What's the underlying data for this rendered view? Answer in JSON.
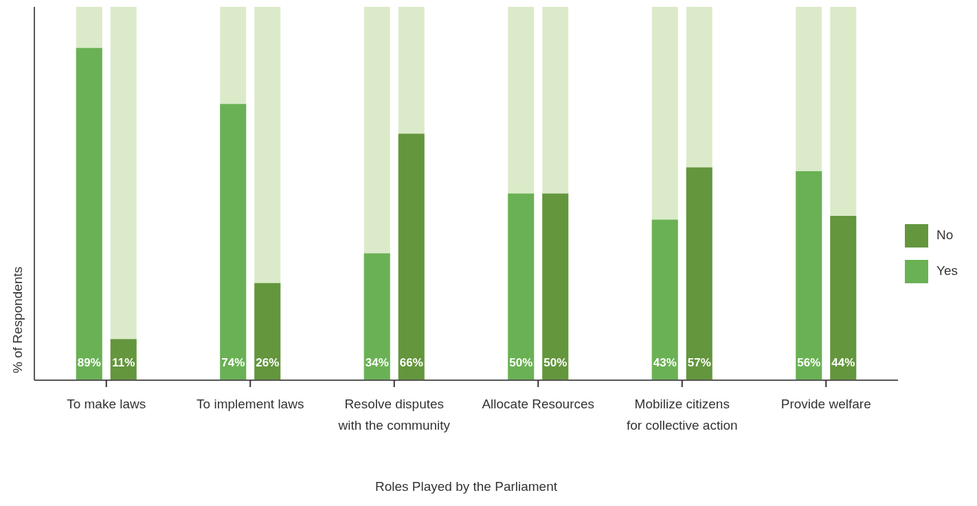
{
  "chart_data": {
    "type": "bar",
    "xlabel": "Roles Played by the Parliament",
    "ylabel": "% of Respondents",
    "categories": [
      "To make laws",
      "To implement laws",
      "Resolve disputes with the community",
      "Allocate Resources",
      "Mobilize citizens for collective action",
      "Provide welfare"
    ],
    "series": [
      {
        "name": "Yes",
        "color": "#6ab155",
        "values": [
          89,
          74,
          34,
          50,
          43,
          56
        ],
        "value_labels": [
          "89%",
          "74%",
          "34%",
          "50%",
          "43%",
          "56%"
        ]
      },
      {
        "name": "No",
        "color": "#64963e",
        "values": [
          11,
          26,
          66,
          50,
          57,
          44
        ],
        "value_labels": [
          "11%",
          "26%",
          "66%",
          "50%",
          "57%",
          "44%"
        ]
      }
    ],
    "ylim": [
      0,
      100
    ],
    "tick_labels": "x",
    "legend": "right",
    "grid": false
  }
}
